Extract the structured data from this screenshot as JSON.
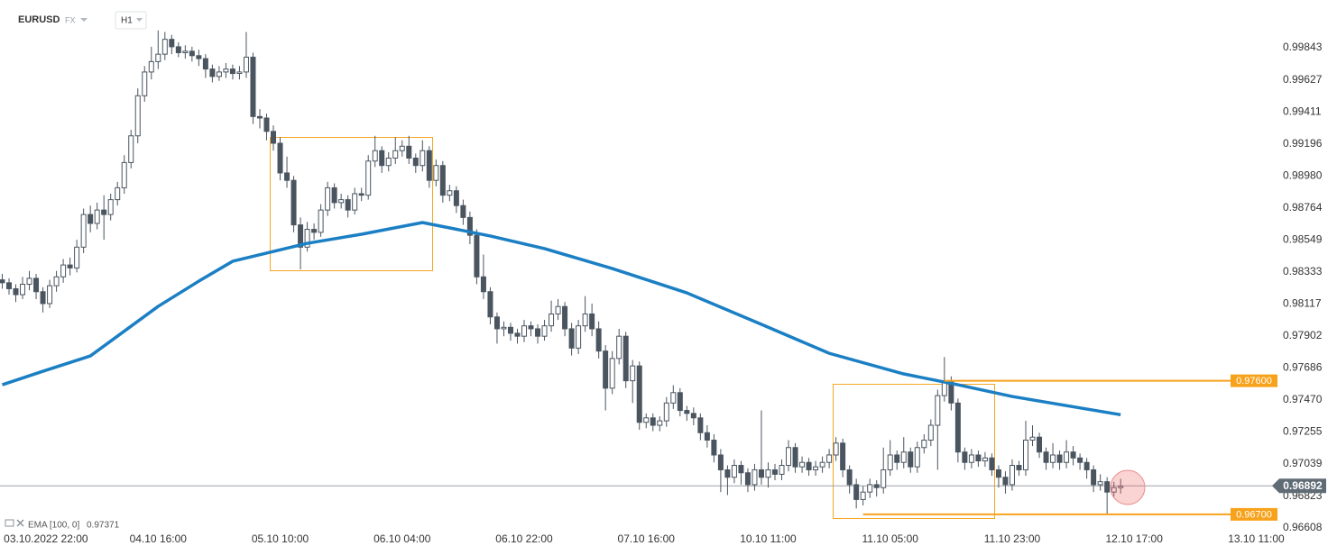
{
  "header": {
    "symbol": "EURUSD",
    "market": "FX",
    "timeframe": "H1"
  },
  "chart_data": {
    "type": "candlestick",
    "ohlc": [
      [
        0.9828,
        0.9832,
        0.9822,
        0.9826
      ],
      [
        0.9826,
        0.9829,
        0.9818,
        0.9822
      ],
      [
        0.9822,
        0.9825,
        0.9813,
        0.9818
      ],
      [
        0.9818,
        0.983,
        0.9815,
        0.9825
      ],
      [
        0.9825,
        0.9834,
        0.9821,
        0.9829
      ],
      [
        0.9829,
        0.9832,
        0.9815,
        0.982
      ],
      [
        0.982,
        0.9823,
        0.9806,
        0.9812
      ],
      [
        0.9812,
        0.9828,
        0.9809,
        0.9824
      ],
      [
        0.9824,
        0.9834,
        0.982,
        0.983
      ],
      [
        0.983,
        0.9842,
        0.9826,
        0.9838
      ],
      [
        0.9838,
        0.9843,
        0.9831,
        0.9836
      ],
      [
        0.9836,
        0.9855,
        0.9833,
        0.985
      ],
      [
        0.985,
        0.9876,
        0.9846,
        0.9872
      ],
      [
        0.9872,
        0.9878,
        0.986,
        0.9866
      ],
      [
        0.9866,
        0.988,
        0.9862,
        0.9875
      ],
      [
        0.9875,
        0.9885,
        0.9855,
        0.9872
      ],
      [
        0.9872,
        0.9886,
        0.9868,
        0.9882
      ],
      [
        0.9882,
        0.9894,
        0.9878,
        0.989
      ],
      [
        0.989,
        0.9912,
        0.9886,
        0.9907
      ],
      [
        0.9907,
        0.9929,
        0.9903,
        0.9925
      ],
      [
        0.9925,
        0.9957,
        0.992,
        0.9952
      ],
      [
        0.9952,
        0.9972,
        0.9948,
        0.9968
      ],
      [
        0.9968,
        0.9985,
        0.9963,
        0.9975
      ],
      [
        0.9975,
        0.9996,
        0.997,
        0.998
      ],
      [
        0.998,
        0.9995,
        0.9976,
        0.999
      ],
      [
        0.999,
        0.9993,
        0.998,
        0.9985
      ],
      [
        0.9985,
        0.9988,
        0.9978,
        0.9981
      ],
      [
        0.9981,
        0.9986,
        0.9977,
        0.9982
      ],
      [
        0.9982,
        0.9985,
        0.9975,
        0.9979
      ],
      [
        0.9979,
        0.9983,
        0.9972,
        0.9977
      ],
      [
        0.9977,
        0.998,
        0.9964,
        0.997
      ],
      [
        0.997,
        0.9973,
        0.9961,
        0.9965
      ],
      [
        0.9965,
        0.9972,
        0.9962,
        0.9968
      ],
      [
        0.9968,
        0.9974,
        0.9964,
        0.997
      ],
      [
        0.997,
        0.9973,
        0.9963,
        0.9967
      ],
      [
        0.9967,
        0.9972,
        0.9963,
        0.9968
      ],
      [
        0.9968,
        0.9995,
        0.9964,
        0.9978
      ],
      [
        0.9978,
        0.9981,
        0.9933,
        0.9938
      ],
      [
        0.9938,
        0.9943,
        0.993,
        0.9937
      ],
      [
        0.9937,
        0.994,
        0.9922,
        0.9928
      ],
      [
        0.9928,
        0.9932,
        0.9915,
        0.992
      ],
      [
        0.992,
        0.9924,
        0.9895,
        0.99
      ],
      [
        0.99,
        0.9911,
        0.989,
        0.9895
      ],
      [
        0.9895,
        0.9898,
        0.986,
        0.9865
      ],
      [
        0.9865,
        0.987,
        0.9835,
        0.985
      ],
      [
        0.985,
        0.9867,
        0.9847,
        0.9862
      ],
      [
        0.9862,
        0.9866,
        0.9855,
        0.986
      ],
      [
        0.986,
        0.9879,
        0.9857,
        0.9875
      ],
      [
        0.9875,
        0.9894,
        0.9871,
        0.989
      ],
      [
        0.989,
        0.9893,
        0.9876,
        0.988
      ],
      [
        0.988,
        0.9886,
        0.9876,
        0.9882
      ],
      [
        0.9882,
        0.9885,
        0.987,
        0.9875
      ],
      [
        0.9875,
        0.989,
        0.9872,
        0.9886
      ],
      [
        0.9886,
        0.989,
        0.9881,
        0.9885
      ],
      [
        0.9885,
        0.9912,
        0.9882,
        0.9908
      ],
      [
        0.9908,
        0.9925,
        0.9904,
        0.9915
      ],
      [
        0.9915,
        0.9918,
        0.99,
        0.9905
      ],
      [
        0.9905,
        0.9914,
        0.9901,
        0.991
      ],
      [
        0.991,
        0.9924,
        0.9906,
        0.9915
      ],
      [
        0.9915,
        0.9922,
        0.9911,
        0.9918
      ],
      [
        0.9918,
        0.9925,
        0.9906,
        0.991
      ],
      [
        0.991,
        0.9913,
        0.99,
        0.9905
      ],
      [
        0.9905,
        0.9922,
        0.9901,
        0.9915
      ],
      [
        0.9915,
        0.9918,
        0.989,
        0.9895
      ],
      [
        0.9895,
        0.9909,
        0.9891,
        0.9905
      ],
      [
        0.9905,
        0.9908,
        0.988,
        0.9885
      ],
      [
        0.9885,
        0.9892,
        0.9881,
        0.9888
      ],
      [
        0.9888,
        0.9891,
        0.9873,
        0.9878
      ],
      [
        0.9878,
        0.9882,
        0.9865,
        0.987
      ],
      [
        0.987,
        0.9874,
        0.9852,
        0.9858
      ],
      [
        0.9858,
        0.9862,
        0.9825,
        0.983
      ],
      [
        0.983,
        0.9845,
        0.9815,
        0.982
      ],
      [
        0.982,
        0.9823,
        0.9798,
        0.9803
      ],
      [
        0.9803,
        0.9806,
        0.9785,
        0.9795
      ],
      [
        0.9795,
        0.98,
        0.979,
        0.9796
      ],
      [
        0.9796,
        0.9799,
        0.9787,
        0.9792
      ],
      [
        0.9792,
        0.9795,
        0.9785,
        0.979
      ],
      [
        0.979,
        0.9801,
        0.9786,
        0.9797
      ],
      [
        0.9797,
        0.98,
        0.979,
        0.9795
      ],
      [
        0.9795,
        0.9798,
        0.9785,
        0.979
      ],
      [
        0.979,
        0.9801,
        0.9787,
        0.9797
      ],
      [
        0.9797,
        0.9814,
        0.9793,
        0.9805
      ],
      [
        0.9805,
        0.9815,
        0.9801,
        0.981
      ],
      [
        0.981,
        0.9813,
        0.979,
        0.9795
      ],
      [
        0.9795,
        0.9799,
        0.9777,
        0.9782
      ],
      [
        0.9782,
        0.9801,
        0.9778,
        0.9797
      ],
      [
        0.9797,
        0.9817,
        0.9793,
        0.9805
      ],
      [
        0.9805,
        0.9812,
        0.979,
        0.9795
      ],
      [
        0.9795,
        0.98,
        0.9775,
        0.978
      ],
      [
        0.978,
        0.9784,
        0.974,
        0.9755
      ],
      [
        0.9755,
        0.978,
        0.9751,
        0.9775
      ],
      [
        0.9775,
        0.9795,
        0.9771,
        0.979
      ],
      [
        0.979,
        0.9793,
        0.9755,
        0.976
      ],
      [
        0.976,
        0.9774,
        0.9745,
        0.977
      ],
      [
        0.977,
        0.9773,
        0.9727,
        0.9732
      ],
      [
        0.9732,
        0.9738,
        0.9728,
        0.9735
      ],
      [
        0.9735,
        0.9738,
        0.9726,
        0.973
      ],
      [
        0.973,
        0.9736,
        0.9726,
        0.9733
      ],
      [
        0.9733,
        0.9749,
        0.9729,
        0.9745
      ],
      [
        0.9745,
        0.9757,
        0.9741,
        0.9752
      ],
      [
        0.9752,
        0.9755,
        0.9736,
        0.974
      ],
      [
        0.974,
        0.9743,
        0.9733,
        0.9738
      ],
      [
        0.9738,
        0.9742,
        0.973,
        0.9735
      ],
      [
        0.9735,
        0.9738,
        0.972,
        0.9725
      ],
      [
        0.9725,
        0.973,
        0.9715,
        0.972
      ],
      [
        0.972,
        0.9724,
        0.9705,
        0.971
      ],
      [
        0.971,
        0.9714,
        0.9685,
        0.97
      ],
      [
        0.97,
        0.9703,
        0.9683,
        0.9695
      ],
      [
        0.9695,
        0.9707,
        0.9691,
        0.9703
      ],
      [
        0.9703,
        0.9706,
        0.969,
        0.9698
      ],
      [
        0.9698,
        0.9701,
        0.9685,
        0.969
      ],
      [
        0.969,
        0.9704,
        0.9686,
        0.97
      ],
      [
        0.97,
        0.974,
        0.969,
        0.9695
      ],
      [
        0.9695,
        0.9705,
        0.9688,
        0.97
      ],
      [
        0.97,
        0.9704,
        0.9693,
        0.9697
      ],
      [
        0.9697,
        0.9707,
        0.9693,
        0.9703
      ],
      [
        0.9703,
        0.972,
        0.9699,
        0.9715
      ],
      [
        0.9715,
        0.9718,
        0.9698,
        0.9702
      ],
      [
        0.9702,
        0.9709,
        0.9698,
        0.9705
      ],
      [
        0.9705,
        0.9708,
        0.9696,
        0.97
      ],
      [
        0.97,
        0.9706,
        0.9696,
        0.9702
      ],
      [
        0.9702,
        0.9709,
        0.9698,
        0.9705
      ],
      [
        0.9705,
        0.9714,
        0.9701,
        0.971
      ],
      [
        0.971,
        0.9722,
        0.9706,
        0.9718
      ],
      [
        0.9718,
        0.9721,
        0.9695,
        0.97
      ],
      [
        0.97,
        0.9703,
        0.9684,
        0.969
      ],
      [
        0.969,
        0.9694,
        0.9674,
        0.968
      ],
      [
        0.968,
        0.9689,
        0.9676,
        0.9685
      ],
      [
        0.9685,
        0.9694,
        0.9681,
        0.969
      ],
      [
        0.969,
        0.9693,
        0.9682,
        0.9688
      ],
      [
        0.9688,
        0.9715,
        0.9684,
        0.97
      ],
      [
        0.97,
        0.972,
        0.9696,
        0.971
      ],
      [
        0.971,
        0.9713,
        0.97,
        0.9705
      ],
      [
        0.9705,
        0.9722,
        0.9701,
        0.9712
      ],
      [
        0.9712,
        0.9715,
        0.9698,
        0.9702
      ],
      [
        0.9702,
        0.9719,
        0.9698,
        0.9715
      ],
      [
        0.9715,
        0.9724,
        0.9711,
        0.972
      ],
      [
        0.972,
        0.9734,
        0.9716,
        0.973
      ],
      [
        0.973,
        0.9754,
        0.97,
        0.975
      ],
      [
        0.975,
        0.9776,
        0.9746,
        0.976
      ],
      [
        0.976,
        0.9763,
        0.974,
        0.9745
      ],
      [
        0.9745,
        0.9748,
        0.9705,
        0.9712
      ],
      [
        0.9712,
        0.9715,
        0.97,
        0.9705
      ],
      [
        0.9705,
        0.9714,
        0.9701,
        0.971
      ],
      [
        0.971,
        0.9713,
        0.9702,
        0.9706
      ],
      [
        0.9706,
        0.9712,
        0.9702,
        0.9708
      ],
      [
        0.9708,
        0.9711,
        0.9696,
        0.97
      ],
      [
        0.97,
        0.9703,
        0.9688,
        0.9695
      ],
      [
        0.9695,
        0.9699,
        0.9684,
        0.969
      ],
      [
        0.969,
        0.9707,
        0.9686,
        0.9703
      ],
      [
        0.9703,
        0.9706,
        0.9696,
        0.97
      ],
      [
        0.97,
        0.9733,
        0.9696,
        0.972
      ],
      [
        0.972,
        0.973,
        0.9716,
        0.9722
      ],
      [
        0.9722,
        0.9725,
        0.9708,
        0.9712
      ],
      [
        0.9712,
        0.9715,
        0.97,
        0.9705
      ],
      [
        0.9705,
        0.9718,
        0.9701,
        0.971
      ],
      [
        0.971,
        0.9713,
        0.97,
        0.9705
      ],
      [
        0.9705,
        0.972,
        0.9701,
        0.9712
      ],
      [
        0.9712,
        0.9716,
        0.9703,
        0.9708
      ],
      [
        0.9708,
        0.9711,
        0.97,
        0.9705
      ],
      [
        0.9705,
        0.9708,
        0.9694,
        0.97
      ],
      [
        0.97,
        0.9703,
        0.9685,
        0.969
      ],
      [
        0.969,
        0.9697,
        0.9686,
        0.9692
      ],
      [
        0.9692,
        0.9695,
        0.967,
        0.9685
      ],
      [
        0.9685,
        0.9692,
        0.9682,
        0.9688
      ],
      [
        0.9688,
        0.9694,
        0.9684,
        0.9689
      ]
    ],
    "up_color": "#ffffff",
    "down_color": "#4a5560",
    "xlim": [
      -0.33,
      186.67
    ],
    "xticks": [
      {
        "value": 5,
        "label": "03.10.2022 22:00"
      },
      {
        "value": 23,
        "label": "04.10 16:00"
      },
      {
        "value": 41,
        "label": "05.10 10:00"
      },
      {
        "value": 59,
        "label": "06.10 04:00"
      },
      {
        "value": 77,
        "label": "06.10 22:00"
      },
      {
        "value": 95,
        "label": "07.10 16:00"
      },
      {
        "value": 113,
        "label": "10.10 11:00"
      },
      {
        "value": 131,
        "label": "11.10 05:00"
      },
      {
        "value": 149,
        "label": "11.10 23:00"
      },
      {
        "value": 167,
        "label": "12.10 17:00"
      },
      {
        "value": 185,
        "label": "13.10 11:00"
      }
    ],
    "ylim": [
      0.96584,
      1.00165
    ],
    "yticks": [
      0.99843,
      0.99627,
      0.99411,
      0.99196,
      {
        "value": 0.9898,
        "label": "0.98980"
      },
      0.98764,
      0.98549,
      0.98333,
      0.98117,
      0.97902,
      0.97686,
      {
        "value": 0.9747,
        "label": "0.97470"
      },
      0.97255,
      0.97039,
      0.96823,
      0.96608
    ],
    "ema": {
      "name": "EMA [100, 0]",
      "color": "#1b7fc4",
      "x": [
        0,
        6,
        13,
        23,
        29,
        34,
        45,
        53,
        62,
        72,
        80,
        90,
        101,
        112,
        122,
        133,
        141,
        149,
        165
      ],
      "values": [
        0.97573,
        0.97664,
        0.97767,
        0.98101,
        0.98271,
        0.98405,
        0.98526,
        0.98587,
        0.98666,
        0.98575,
        0.9849,
        0.98356,
        0.98192,
        0.9798,
        0.97785,
        0.97646,
        0.97573,
        0.97494,
        0.97371
      ]
    },
    "current_price": 0.96892,
    "levels": [
      {
        "value": 0.976,
        "label": "0.97600",
        "from": 139,
        "color": "#f7a21b"
      },
      {
        "value": 0.967,
        "label": "0.96700",
        "from": 127,
        "color": "#f7a21b"
      }
    ]
  }
}
